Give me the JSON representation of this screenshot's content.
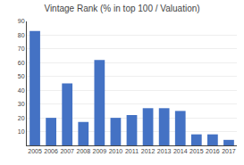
{
  "chart_data": {
    "type": "bar",
    "title": "Vintage Rank (% in top 100 / Valuation)",
    "categories": [
      "2005",
      "2006",
      "2007",
      "2008",
      "2009",
      "2010",
      "2011",
      "2012",
      "2013",
      "2014",
      "2015",
      "2016",
      "2017"
    ],
    "values": [
      83,
      20,
      45,
      17,
      62,
      20,
      22,
      27,
      27,
      25,
      8,
      8,
      4
    ],
    "color": "#4472C4",
    "ylim": [
      0,
      90
    ],
    "yticks": [
      10,
      20,
      30,
      40,
      50,
      60,
      70,
      80,
      90
    ],
    "grid": true
  }
}
